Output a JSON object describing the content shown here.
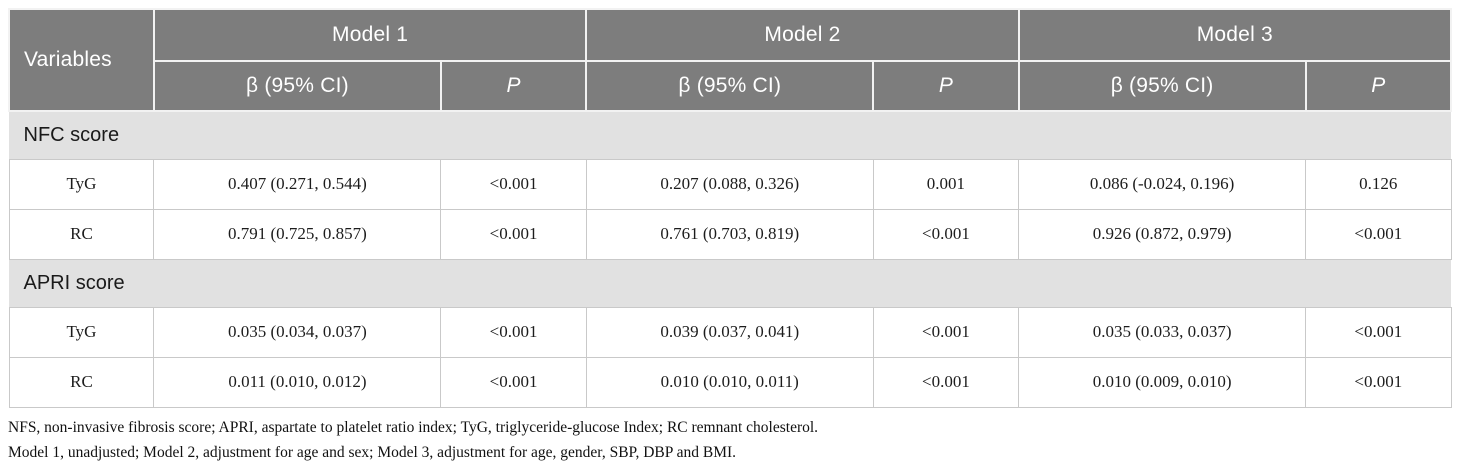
{
  "colors": {
    "header_bg": "#7d7d7d",
    "header_text": "#ffffff",
    "section_bg": "#e1e1e1",
    "section_text": "#1a1a1a",
    "row_bg": "#ffffff",
    "border": "#c9c9c9",
    "header_divider": "#f2f2f2",
    "data_text": "#1c1c1c"
  },
  "table": {
    "variables_header": "Variables",
    "models": [
      {
        "name": "Model 1",
        "beta_header": "β (95% CI)",
        "p_header": "P"
      },
      {
        "name": "Model 2",
        "beta_header": "β (95% CI)",
        "p_header": "P"
      },
      {
        "name": "Model 3",
        "beta_header": "β (95% CI)",
        "p_header": "P"
      }
    ],
    "sections": [
      {
        "title": "NFC score",
        "rows": [
          {
            "variable": "TyG",
            "cells": [
              {
                "beta": "0.407 (0.271, 0.544)",
                "p": "<0.001"
              },
              {
                "beta": "0.207 (0.088, 0.326)",
                "p": "0.001"
              },
              {
                "beta": "0.086 (-0.024, 0.196)",
                "p": "0.126"
              }
            ]
          },
          {
            "variable": "RC",
            "cells": [
              {
                "beta": "0.791 (0.725, 0.857)",
                "p": "<0.001"
              },
              {
                "beta": "0.761 (0.703, 0.819)",
                "p": "<0.001"
              },
              {
                "beta": "0.926 (0.872, 0.979)",
                "p": "<0.001"
              }
            ]
          }
        ]
      },
      {
        "title": "APRI score",
        "rows": [
          {
            "variable": "TyG",
            "cells": [
              {
                "beta": "0.035 (0.034, 0.037)",
                "p": "<0.001"
              },
              {
                "beta": "0.039 (0.037, 0.041)",
                "p": "<0.001"
              },
              {
                "beta": "0.035 (0.033, 0.037)",
                "p": "<0.001"
              }
            ]
          },
          {
            "variable": "RC",
            "cells": [
              {
                "beta": "0.011 (0.010, 0.012)",
                "p": "<0.001"
              },
              {
                "beta": "0.010 (0.010, 0.011)",
                "p": "<0.001"
              },
              {
                "beta": "0.010 (0.009, 0.010)",
                "p": "<0.001"
              }
            ]
          }
        ]
      }
    ]
  },
  "footnotes": [
    "NFS, non-invasive fibrosis score; APRI, aspartate to platelet ratio index; TyG, triglyceride-glucose Index; RC remnant cholesterol.",
    "Model 1, unadjusted; Model 2, adjustment for age and sex; Model 3, adjustment for age, gender, SBP, DBP and BMI."
  ]
}
